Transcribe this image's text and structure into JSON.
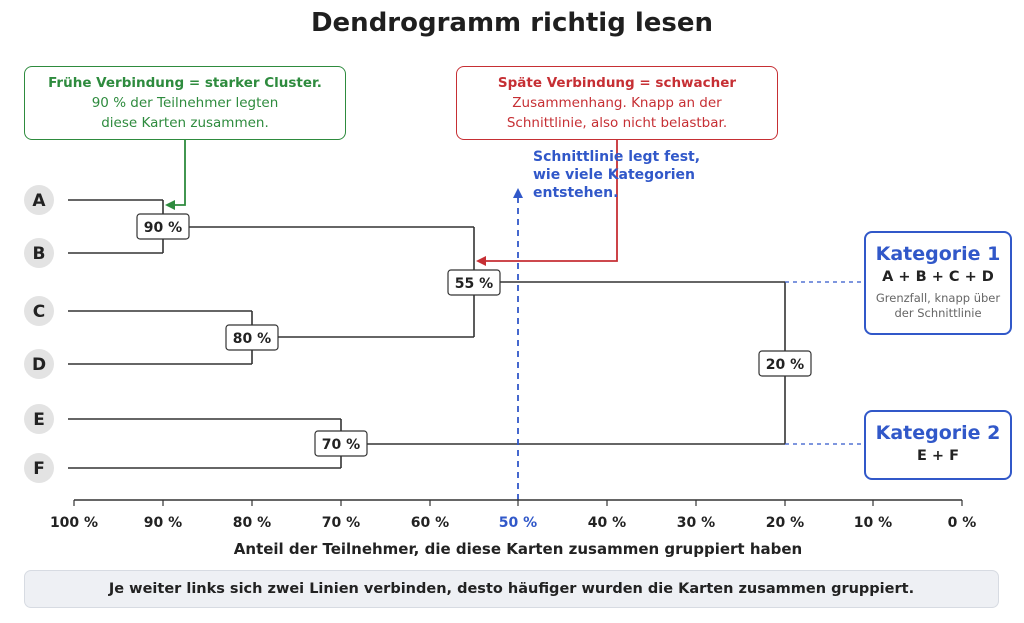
{
  "title": "Dendrogramm richtig lesen",
  "colors": {
    "green": "#2e8b3e",
    "red": "#c62f34",
    "blue": "#3158c9",
    "line": "#333333",
    "leaf_bg": "#e3e3e3"
  },
  "leaves": [
    "A",
    "B",
    "C",
    "D",
    "E",
    "F"
  ],
  "merges": [
    {
      "members": "A + B",
      "value": 90,
      "label": "90 %"
    },
    {
      "members": "C + D",
      "value": 80,
      "label": "80 %"
    },
    {
      "members": "E + F",
      "value": 70,
      "label": "70 %"
    },
    {
      "members": "A + B + C + D",
      "value": 55,
      "label": "55 %"
    },
    {
      "members": "A + B + C + D + E + F",
      "value": 20,
      "label": "20 %"
    }
  ],
  "axis": {
    "ticks": [
      "100 %",
      "90 %",
      "80 %",
      "70 %",
      "60 %",
      "50 %",
      "40 %",
      "30 %",
      "20 %",
      "10 %",
      "0 %"
    ],
    "tick_values": [
      100,
      90,
      80,
      70,
      60,
      50,
      40,
      30,
      20,
      10,
      0
    ],
    "highlight_tick": "50 %",
    "label": "Anteil der Teilnehmer, die diese Karten zusammen gruppiert haben"
  },
  "cut_line": {
    "value": 50,
    "note_line1": "Schnittlinie legt fest,",
    "note_line2": "wie viele Kategorien",
    "note_line3": "entstehen."
  },
  "callout_early": {
    "heading": "Frühe Verbindung = starker Cluster.",
    "line2": "90 % der Teilnehmer legten",
    "line3": "diese Karten zusammen."
  },
  "callout_late": {
    "heading": "Späte Verbindung = schwacher",
    "line2": "Zusammenhang. Knapp an der",
    "line3": "Schnittlinie, also nicht belastbar."
  },
  "category1": {
    "title": "Kategorie 1",
    "members": "A + B + C + D",
    "note_line1": "Grenzfall, knapp über",
    "note_line2": "der Schnittlinie"
  },
  "category2": {
    "title": "Kategorie 2",
    "members": "E + F"
  },
  "footer": "Je weiter links sich zwei Linien verbinden, desto häufiger wurden die Karten zusammen gruppiert."
}
